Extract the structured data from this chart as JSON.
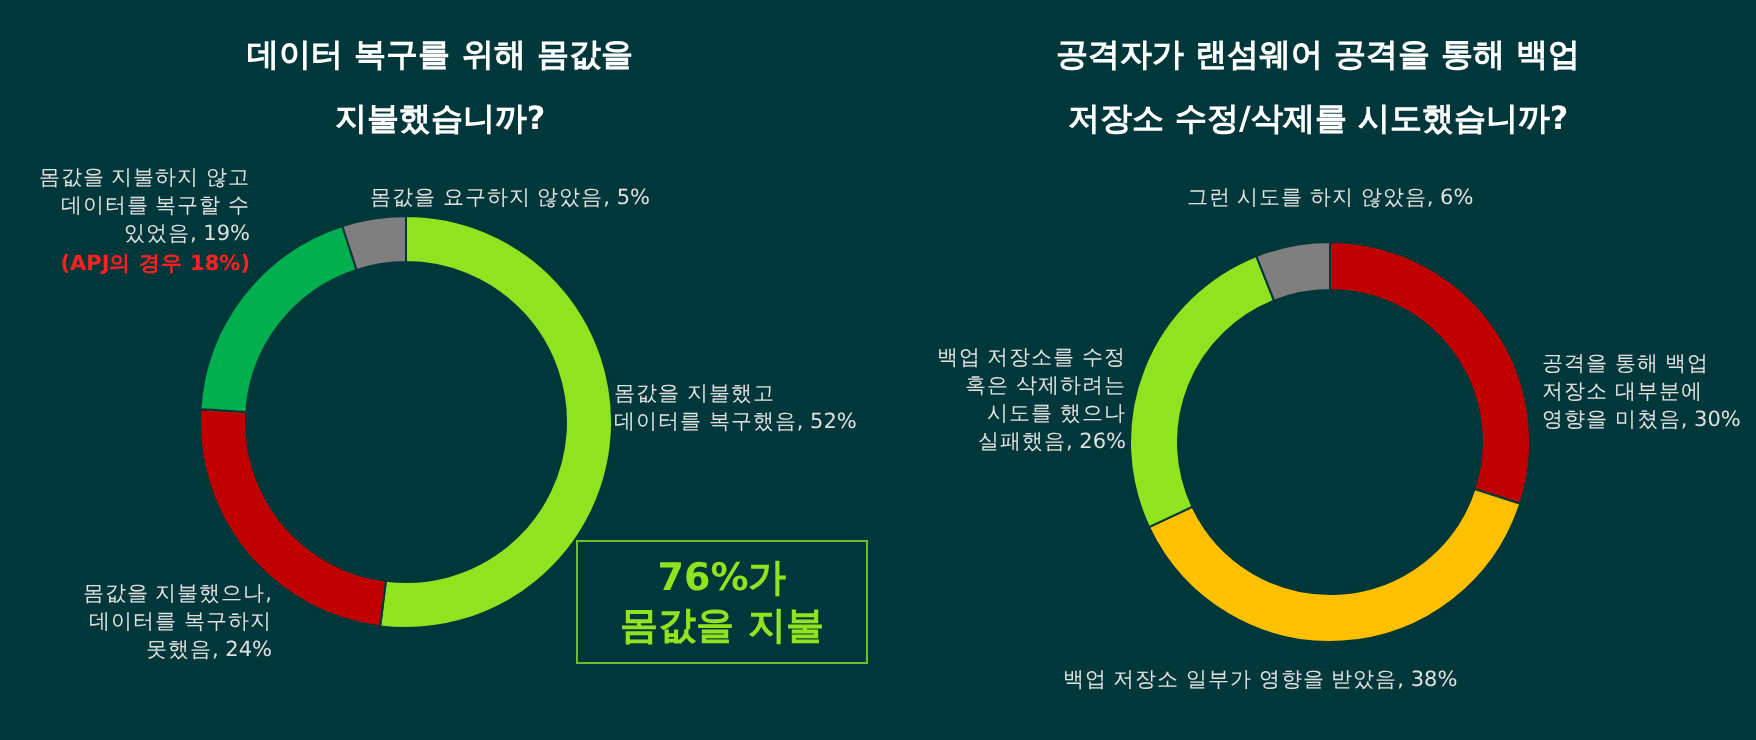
{
  "chart_data": [
    {
      "type": "donut",
      "title": "데이터 복구를 위해 몸값을 지불했습니까?",
      "categories": [
        "몸값을 지불했고 데이터를 복구했음",
        "몸값을 지불했으나, 데이터를 복구하지 못했음",
        "몸값을 지불하지 않고 데이터를 복구할 수 있었음",
        "몸값을 요구하지 않았음"
      ],
      "values": [
        52,
        24,
        19,
        5
      ],
      "value_labels": [
        "52%",
        "24%",
        "19%",
        "5%"
      ],
      "colors": [
        "#8fe31f",
        "#c00000",
        "#00b04f",
        "#7f7f7f"
      ],
      "legend": false,
      "annotations": [
        "(APJ의 경우 18%)",
        "76%가 몸값을 지불"
      ]
    },
    {
      "type": "donut",
      "title": "공격자가 랜섬웨어 공격을 통해 백업 저장소 수정/삭제를 시도했습니까?",
      "categories": [
        "공격을 통해 백업 저장소 대부분에 영향을 미쳤음",
        "백업 저장소 일부가 영향을 받았음",
        "백업 저장소를 수정 혹은 삭제하려는 시도를 했으나 실패했음",
        "그런 시도를 하지 않았음"
      ],
      "values": [
        30,
        38,
        26,
        6
      ],
      "value_labels": [
        "30%",
        "38%",
        "26%",
        "6%"
      ],
      "colors": [
        "#c00000",
        "#ffc000",
        "#8fe31f",
        "#7f7f7f"
      ],
      "legend": false
    }
  ]
}
